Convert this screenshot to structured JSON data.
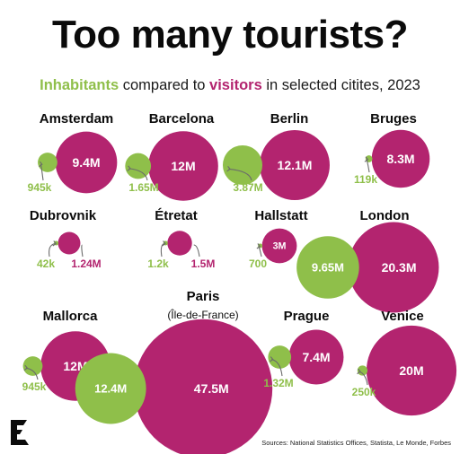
{
  "title": "Too many tourists?",
  "subtitle": {
    "inhabitants_word": "Inhabitants",
    "middle_text": " compared to ",
    "visitors_word": "visitors",
    "end_text": " in selected citites, 2023"
  },
  "sources": "Sources: National Statistics Offices, Statista, Le Monde, Forbes",
  "logo": "E",
  "colors": {
    "inhabitants": "#8fbf4a",
    "visitors": "#b3246f",
    "text": "#0b0b0b"
  },
  "chart_data": {
    "type": "bubble",
    "series": [
      {
        "name": "Inhabitants",
        "color": "#8fbf4a"
      },
      {
        "name": "Visitors",
        "color": "#b3246f"
      }
    ],
    "units": "people",
    "cities": [
      {
        "name": "Amsterdam",
        "subname": "",
        "inhabitants": 945000,
        "visitors": 9400000,
        "inhabitants_label": "945k",
        "visitors_label": "9.4M"
      },
      {
        "name": "Barcelona",
        "subname": "",
        "inhabitants": 1650000,
        "visitors": 12000000,
        "inhabitants_label": "1.65M",
        "visitors_label": "12M"
      },
      {
        "name": "Berlin",
        "subname": "",
        "inhabitants": 3870000,
        "visitors": 12100000,
        "inhabitants_label": "3.87M",
        "visitors_label": "12.1M"
      },
      {
        "name": "Bruges",
        "subname": "",
        "inhabitants": 119000,
        "visitors": 8300000,
        "inhabitants_label": "119k",
        "visitors_label": "8.3M"
      },
      {
        "name": "Dubrovnik",
        "subname": "",
        "inhabitants": 42000,
        "visitors": 1240000,
        "inhabitants_label": "42k",
        "visitors_label": "1.24M"
      },
      {
        "name": "Étretat",
        "subname": "",
        "inhabitants": 1200,
        "visitors": 1500000,
        "inhabitants_label": "1.2k",
        "visitors_label": "1.5M"
      },
      {
        "name": "Hallstatt",
        "subname": "",
        "inhabitants": 700,
        "visitors": 3000000,
        "inhabitants_label": "700",
        "visitors_label": "3M"
      },
      {
        "name": "London",
        "subname": "",
        "inhabitants": 9650000,
        "visitors": 20300000,
        "inhabitants_label": "9.65M",
        "visitors_label": "20.3M"
      },
      {
        "name": "Mallorca",
        "subname": "",
        "inhabitants": 945000,
        "visitors": 12000000,
        "inhabitants_label": "945k",
        "visitors_label": "12M"
      },
      {
        "name": "Paris",
        "subname": "(Île-de-France)",
        "inhabitants": 12400000,
        "visitors": 47500000,
        "inhabitants_label": "12.4M",
        "visitors_label": "47.5M"
      },
      {
        "name": "Prague",
        "subname": "",
        "inhabitants": 1320000,
        "visitors": 7400000,
        "inhabitants_label": "1.32M",
        "visitors_label": "7.4M"
      },
      {
        "name": "Venice",
        "subname": "",
        "inhabitants": 250000,
        "visitors": 20000000,
        "inhabitants_label": "250k",
        "visitors_label": "20M"
      }
    ]
  }
}
